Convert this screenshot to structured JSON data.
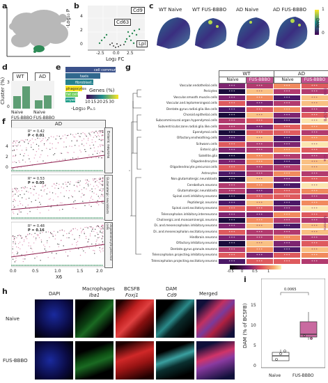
{
  "panels": {
    "a": "a",
    "b": "b",
    "c": "c",
    "d": "d",
    "e": "e",
    "f": "f",
    "g": "g",
    "h": "h",
    "i": "i"
  },
  "panel_b": {
    "xlabel": "Log₂ FC",
    "ylabel": "-Log₁₀ P",
    "ticks_x": [
      "-2.5",
      "0.0",
      "2.5"
    ],
    "ticks_y": [
      "0",
      "2",
      "4"
    ],
    "genes": [
      "Cd9",
      "Cd63",
      "Lpl"
    ]
  },
  "panel_c": {
    "titles": [
      "WT Naive",
      "WT FUS-BBBO",
      "AD Naive",
      "AD FUS-BBBO"
    ],
    "colorbar_label": "DAM",
    "colorbar_ticks": [
      "0",
      "1"
    ]
  },
  "panel_d": {
    "groups": [
      "WT",
      "AD"
    ],
    "ylabel": "Cluster (%)",
    "yticks": [
      "0",
      "1",
      "2",
      "3"
    ],
    "xlabels": [
      "Naive",
      "FUS-BBBO",
      "Naive",
      "FUS-BBBO"
    ]
  },
  "panel_e": {
    "terms": [
      "cell communicatio",
      "taxis",
      "fibroblast...",
      "phagocytos",
      "fat cell differe",
      "myelination"
    ],
    "legend_title": "Genes (%)",
    "legend_ticks": [
      "10",
      "15",
      "20",
      "25",
      "30"
    ],
    "xlabel": "-Log₁₀ Pₐ.₅"
  },
  "panel_f": {
    "title": "AD",
    "xlabel": "X6",
    "yticks": [
      "0",
      "1",
      "2",
      "3",
      "4"
    ],
    "xticks": [
      "0.0",
      "0.5",
      "1.0",
      "1.5",
      "2.0"
    ],
    "facets": [
      {
        "name": "Enteric neurons",
        "r2": "R² = 0.42",
        "p": "P < 0.01"
      },
      {
        "name": "Glutamatergic neuroblasts",
        "r2": "R² = 0.53",
        "p": "P = 0.05"
      },
      {
        "name": "Oligodendrocyte precursor cells",
        "r2": "R² = 0.48",
        "p": "P = 0.16"
      }
    ]
  },
  "panel_g": {
    "groups": [
      "WT",
      "AD"
    ],
    "subgroups": [
      "Naive",
      "FUS-BBBO",
      "Naive",
      "FUS-BBBO"
    ],
    "colorbar_ticks": [
      "-0.5",
      "0",
      "0.5",
      "1"
    ],
    "categories": [
      "BBB",
      "BCSFB",
      "Glia",
      "Neurons"
    ],
    "rows": [
      "Vascular.endothelial.cells",
      "Pericytes",
      "Vascular.smooth.muscle.cells",
      "Vascular.and.leptomeningeal.cells",
      "Dentate.gyrus.radial.glia.like.cells",
      "Choroid.epithelial.cells",
      "Subcommissural.organ.hypendymal.cells",
      "Subventricular.zone.radial.glia.like.cells",
      "Ependymal.cells",
      "Olfactory.ensheathing.cells",
      "Schwann.cells",
      "Enteric.glia",
      "Satellite.glia",
      "Oligodendrocytes",
      "Oligodendrocyte.precursor.cells",
      "Astrocytes",
      "Non.glutamatergic.neuroblasts",
      "Cerebellum.neurons",
      "Glutamatergic.neuroblasts",
      "Spinal.cord.inhibitory.neurons",
      "Peptidergic.neurons",
      "Spinal.cord.excitatory.neurons",
      "Telencephalon.inhibitory.interneurons",
      "Cholinergic.and.monoaminergic.neurons",
      "Di..and.mesencephalon.inhibitory.neurons",
      "Di..and.mesencephalon.excitatory.neurons",
      "Hindbrain.neurons",
      "Olfactory.inhibitory.neurons",
      "Dentate.gyrus.granule.neurons",
      "Telencephalon.projecting.inhibitory.neurons",
      "Telencephalon.projecting.excitatory.neurons"
    ],
    "cell_mark": "* * *"
  },
  "panel_h": {
    "columns": [
      "DAPI",
      "Macrophages",
      "BCSFB",
      "DAM",
      "Merged"
    ],
    "markers": [
      "",
      "Iba1",
      "Foxj1",
      "Cd9",
      ""
    ],
    "rows": [
      "Naive",
      "FUS-BBBO"
    ]
  },
  "panel_i": {
    "ylabel": "DAM (% of BCSFB)",
    "yticks": [
      "0",
      "5",
      "10",
      "15"
    ],
    "xlabels": [
      "Naive",
      "FUS-BBBO"
    ],
    "pvalue": "0.0065"
  },
  "colors": {
    "naive_box": "#ffffff",
    "fus_box": "#c96aa0",
    "bar": "#5e9e74",
    "heat_low": "#0d0a2c",
    "heat_high": "#fbf3b4"
  }
}
